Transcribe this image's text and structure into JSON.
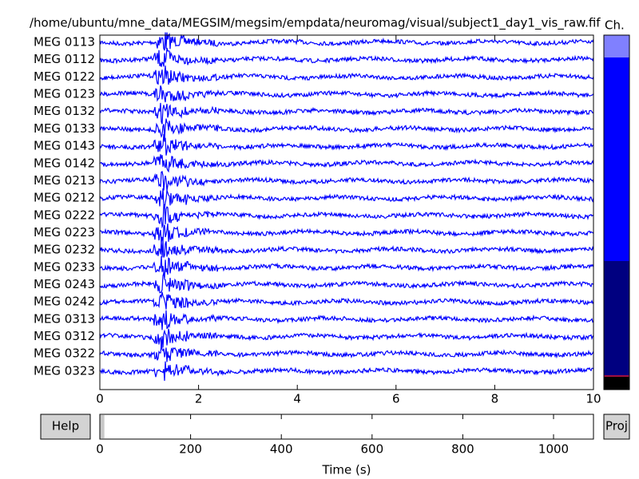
{
  "window": {
    "title": "/home/ubuntu/mne_data/MEGSIM/megsim/empdata/neuromag/visual/subject1_day1_vis_raw.fif",
    "channel_bar_label": "Ch.",
    "channels": [
      "MEG 0113",
      "MEG 0112",
      "MEG 0122",
      "MEG 0123",
      "MEG 0132",
      "MEG 0133",
      "MEG 0143",
      "MEG 0142",
      "MEG 0213",
      "MEG 0212",
      "MEG 0222",
      "MEG 0223",
      "MEG 0232",
      "MEG 0233",
      "MEG 0243",
      "MEG 0242",
      "MEG 0313",
      "MEG 0312",
      "MEG 0322",
      "MEG 0323"
    ],
    "time_axis": {
      "xlim": [
        0,
        10
      ],
      "xticks": [
        0,
        2,
        4,
        6,
        8,
        10
      ]
    },
    "scroll_axis": {
      "xlim": [
        0,
        1088
      ],
      "xticks": [
        0,
        200,
        400,
        600,
        800,
        1000
      ],
      "xlabel": "Time (s)"
    },
    "buttons": {
      "help": "Help",
      "proj": "Proj"
    }
  }
}
